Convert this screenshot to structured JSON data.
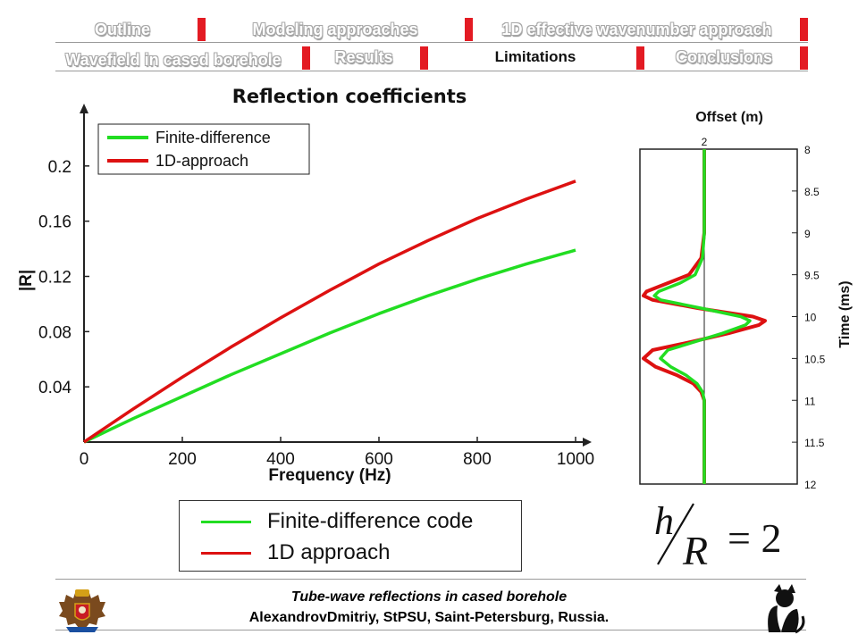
{
  "nav": {
    "row1": [
      {
        "label": "Outline"
      },
      {
        "label": "Modeling approaches"
      },
      {
        "label": "1D effective wavenumber approach"
      }
    ],
    "row2": [
      {
        "label": "Wavefield in cased borehole"
      },
      {
        "label": "Results"
      },
      {
        "label": "Limitations",
        "active": true
      },
      {
        "label": "Conclusions"
      }
    ],
    "separator_color": "#e31b23"
  },
  "chart_data": [
    {
      "type": "line",
      "title": "Reflection coefficients",
      "xlabel": "Frequency (Hz)",
      "ylabel": "|R|",
      "xlim": [
        0,
        1000
      ],
      "ylim": [
        0,
        0.24
      ],
      "x_ticks": [
        "0",
        "200",
        "400",
        "600",
        "800",
        "1000"
      ],
      "y_ticks": [
        "0.04",
        "0.08",
        "0.12",
        "0.16",
        "0.2"
      ],
      "grid": false,
      "legend_position": "top-left",
      "x": [
        0,
        100,
        200,
        300,
        400,
        500,
        600,
        700,
        800,
        900,
        1000
      ],
      "series": [
        {
          "name": "Finite-difference",
          "color": "#22dd22",
          "values": [
            0,
            0.017,
            0.033,
            0.049,
            0.064,
            0.079,
            0.093,
            0.106,
            0.118,
            0.129,
            0.139
          ]
        },
        {
          "name": "1D-approach",
          "color": "#dd1111",
          "values": [
            0,
            0.024,
            0.047,
            0.069,
            0.09,
            0.11,
            0.129,
            0.146,
            0.162,
            0.176,
            0.189
          ]
        }
      ]
    },
    {
      "type": "line",
      "title": "Offset (m)",
      "xlabel": "",
      "ylabel": "Time (ms)",
      "x_tick": "2",
      "ylim": [
        8,
        12
      ],
      "y_ticks": [
        "8",
        "8.5",
        "9",
        "9.5",
        "10",
        "10.5",
        "11",
        "11.5",
        "12"
      ],
      "t": [
        8.0,
        9.0,
        9.3,
        9.5,
        9.6,
        9.7,
        9.75,
        9.8,
        9.9,
        10.0,
        10.05,
        10.1,
        10.2,
        10.3,
        10.4,
        10.5,
        10.6,
        10.7,
        10.8,
        10.9,
        11.0,
        12.0
      ],
      "series": [
        {
          "color": "#dd1111",
          "values": [
            0,
            0,
            -0.05,
            -0.25,
            -0.6,
            -0.95,
            -1.0,
            -0.85,
            -0.1,
            0.8,
            1.0,
            0.9,
            0.4,
            -0.2,
            -0.85,
            -1.0,
            -0.8,
            -0.45,
            -0.18,
            -0.05,
            0,
            0
          ]
        },
        {
          "color": "#22dd22",
          "values": [
            0,
            0,
            -0.03,
            -0.15,
            -0.4,
            -0.75,
            -0.82,
            -0.72,
            -0.05,
            0.6,
            0.75,
            0.68,
            0.3,
            -0.15,
            -0.6,
            -0.72,
            -0.55,
            -0.3,
            -0.12,
            -0.03,
            0,
            0
          ]
        }
      ]
    }
  ],
  "legend": {
    "items": [
      {
        "label": "Finite-difference code",
        "color": "#22dd22"
      },
      {
        "label": "1D approach",
        "color": "#dd1111"
      }
    ]
  },
  "formula": {
    "numerator": "h",
    "denominator": "R",
    "rhs": "= 2"
  },
  "footer": {
    "title": "Tube-wave reflections in cased borehole",
    "authors": "AlexandrovDmitriy, StPSU, Saint-Petersburg, Russia."
  },
  "icons": {
    "left_logo": "coat-of-arms-icon",
    "right_logo": "cat-logo-icon"
  }
}
